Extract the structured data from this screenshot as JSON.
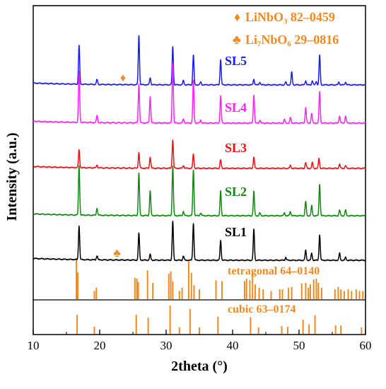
{
  "chart_data": {
    "type": "line",
    "xlabel": "2theta (°)",
    "ylabel": "Intensity (a.u.)",
    "xlim": [
      10,
      60
    ],
    "xticks": [
      10,
      20,
      30,
      40,
      50,
      60
    ],
    "legend_position": "top-right",
    "legend": [
      {
        "symbol": "♦",
        "text": "LiNbO₃ 82–0459",
        "color": "#f08a20"
      },
      {
        "symbol": "♣",
        "text": "Li₇NbO₆ 29–0816",
        "color": "#f08a20"
      }
    ],
    "series": [
      {
        "name": "SL5",
        "color": "#1a1aff",
        "peaks": [
          [
            16.9,
            55
          ],
          [
            19.6,
            7
          ],
          [
            25.9,
            70
          ],
          [
            27.6,
            10
          ],
          [
            31.0,
            54
          ],
          [
            32.6,
            6
          ],
          [
            34.1,
            42
          ],
          [
            35.2,
            4
          ],
          [
            38.2,
            36
          ],
          [
            43.2,
            8
          ],
          [
            44.1,
            4
          ],
          [
            48.0,
            4
          ],
          [
            48.9,
            18
          ],
          [
            51.0,
            6
          ],
          [
            52.0,
            6
          ],
          [
            52.6,
            5
          ],
          [
            53.1,
            42
          ],
          [
            56.0,
            4
          ],
          [
            57.0,
            4
          ]
        ]
      },
      {
        "name": "SL4",
        "color": "#ff22ff",
        "peaks": [
          [
            16.9,
            72
          ],
          [
            19.6,
            10
          ],
          [
            25.9,
            55
          ],
          [
            27.6,
            37
          ],
          [
            31.0,
            85
          ],
          [
            32.6,
            6
          ],
          [
            34.1,
            60
          ],
          [
            35.2,
            4
          ],
          [
            38.2,
            38
          ],
          [
            43.2,
            40
          ],
          [
            44.1,
            4
          ],
          [
            47.8,
            5
          ],
          [
            48.7,
            8
          ],
          [
            51.0,
            22
          ],
          [
            51.9,
            14
          ],
          [
            53.1,
            44
          ],
          [
            56.1,
            10
          ],
          [
            57.0,
            10
          ]
        ]
      },
      {
        "name": "SL3",
        "color": "#ee1111",
        "peaks": [
          [
            16.9,
            25
          ],
          [
            19.6,
            4
          ],
          [
            25.9,
            22
          ],
          [
            27.6,
            16
          ],
          [
            31.0,
            40
          ],
          [
            32.6,
            4
          ],
          [
            34.1,
            20
          ],
          [
            38.2,
            12
          ],
          [
            43.2,
            16
          ],
          [
            48.7,
            4
          ],
          [
            51.0,
            8
          ],
          [
            52.0,
            8
          ],
          [
            53.0,
            14
          ],
          [
            56.1,
            6
          ],
          [
            57.0,
            4
          ]
        ]
      },
      {
        "name": "SL2",
        "color": "#118811",
        "peaks": [
          [
            16.9,
            70
          ],
          [
            19.6,
            10
          ],
          [
            25.9,
            60
          ],
          [
            27.6,
            35
          ],
          [
            31.0,
            70
          ],
          [
            32.6,
            6
          ],
          [
            34.1,
            65
          ],
          [
            35.2,
            4
          ],
          [
            38.2,
            35
          ],
          [
            43.2,
            34
          ],
          [
            44.1,
            4
          ],
          [
            47.8,
            4
          ],
          [
            48.7,
            6
          ],
          [
            51.0,
            20
          ],
          [
            51.9,
            14
          ],
          [
            53.1,
            45
          ],
          [
            56.1,
            8
          ],
          [
            57.0,
            8
          ]
        ]
      },
      {
        "name": "SL1",
        "color": "#000000",
        "peaks": [
          [
            16.9,
            48
          ],
          [
            19.6,
            6
          ],
          [
            25.9,
            38
          ],
          [
            27.6,
            8
          ],
          [
            31.0,
            55
          ],
          [
            32.6,
            6
          ],
          [
            34.1,
            52
          ],
          [
            38.2,
            28
          ],
          [
            43.2,
            44
          ],
          [
            48.0,
            4
          ],
          [
            51.0,
            14
          ],
          [
            51.9,
            10
          ],
          [
            53.1,
            36
          ],
          [
            56.1,
            10
          ],
          [
            57.0,
            4
          ]
        ]
      }
    ],
    "markers": [
      {
        "symbol": "♦",
        "x": 23.5,
        "series": "SL5"
      },
      {
        "symbol": "♣",
        "x": 22.6,
        "series": "SL1"
      }
    ],
    "reference_patterns": [
      {
        "label": "tetragonal 64–0140",
        "color": "#f08a20",
        "lines": [
          [
            16.5,
            100
          ],
          [
            16.7,
            65
          ],
          [
            19.2,
            20
          ],
          [
            19.5,
            28
          ],
          [
            25.3,
            52
          ],
          [
            25.6,
            50
          ],
          [
            25.8,
            42
          ],
          [
            27.2,
            70
          ],
          [
            28.0,
            40
          ],
          [
            30.4,
            62
          ],
          [
            30.7,
            68
          ],
          [
            31.0,
            44
          ],
          [
            32.0,
            20
          ],
          [
            32.4,
            28
          ],
          [
            33.4,
            92
          ],
          [
            33.8,
            64
          ],
          [
            34.2,
            34
          ],
          [
            35.0,
            24
          ],
          [
            37.5,
            46
          ],
          [
            38.4,
            44
          ],
          [
            41.8,
            44
          ],
          [
            42.1,
            50
          ],
          [
            42.6,
            46
          ],
          [
            43.0,
            68
          ],
          [
            43.4,
            36
          ],
          [
            44.0,
            28
          ],
          [
            44.6,
            24
          ],
          [
            45.8,
            20
          ],
          [
            47.1,
            24
          ],
          [
            47.5,
            24
          ],
          [
            48.4,
            28
          ],
          [
            48.9,
            30
          ],
          [
            50.4,
            38
          ],
          [
            51.0,
            40
          ],
          [
            51.4,
            28
          ],
          [
            51.7,
            36
          ],
          [
            52.2,
            48
          ],
          [
            52.6,
            50
          ],
          [
            52.9,
            40
          ],
          [
            53.4,
            28
          ],
          [
            55.4,
            24
          ],
          [
            55.9,
            30
          ],
          [
            56.3,
            24
          ],
          [
            56.8,
            20
          ],
          [
            57.4,
            24
          ],
          [
            57.9,
            20
          ],
          [
            58.6,
            24
          ],
          [
            59.1,
            20
          ],
          [
            59.6,
            20
          ]
        ]
      },
      {
        "label": "cubic 63–0174",
        "color": "#f08a20",
        "lines": [
          [
            16.6,
            64
          ],
          [
            19.2,
            24
          ],
          [
            25.5,
            64
          ],
          [
            27.3,
            54
          ],
          [
            30.6,
            95
          ],
          [
            32.0,
            22
          ],
          [
            33.6,
            84
          ],
          [
            35.0,
            22
          ],
          [
            37.8,
            58
          ],
          [
            42.7,
            56
          ],
          [
            43.9,
            22
          ],
          [
            47.4,
            26
          ],
          [
            48.3,
            24
          ],
          [
            50.6,
            48
          ],
          [
            51.5,
            32
          ],
          [
            52.4,
            62
          ],
          [
            55.5,
            28
          ],
          [
            56.3,
            28
          ],
          [
            59.4,
            22
          ]
        ]
      }
    ]
  }
}
